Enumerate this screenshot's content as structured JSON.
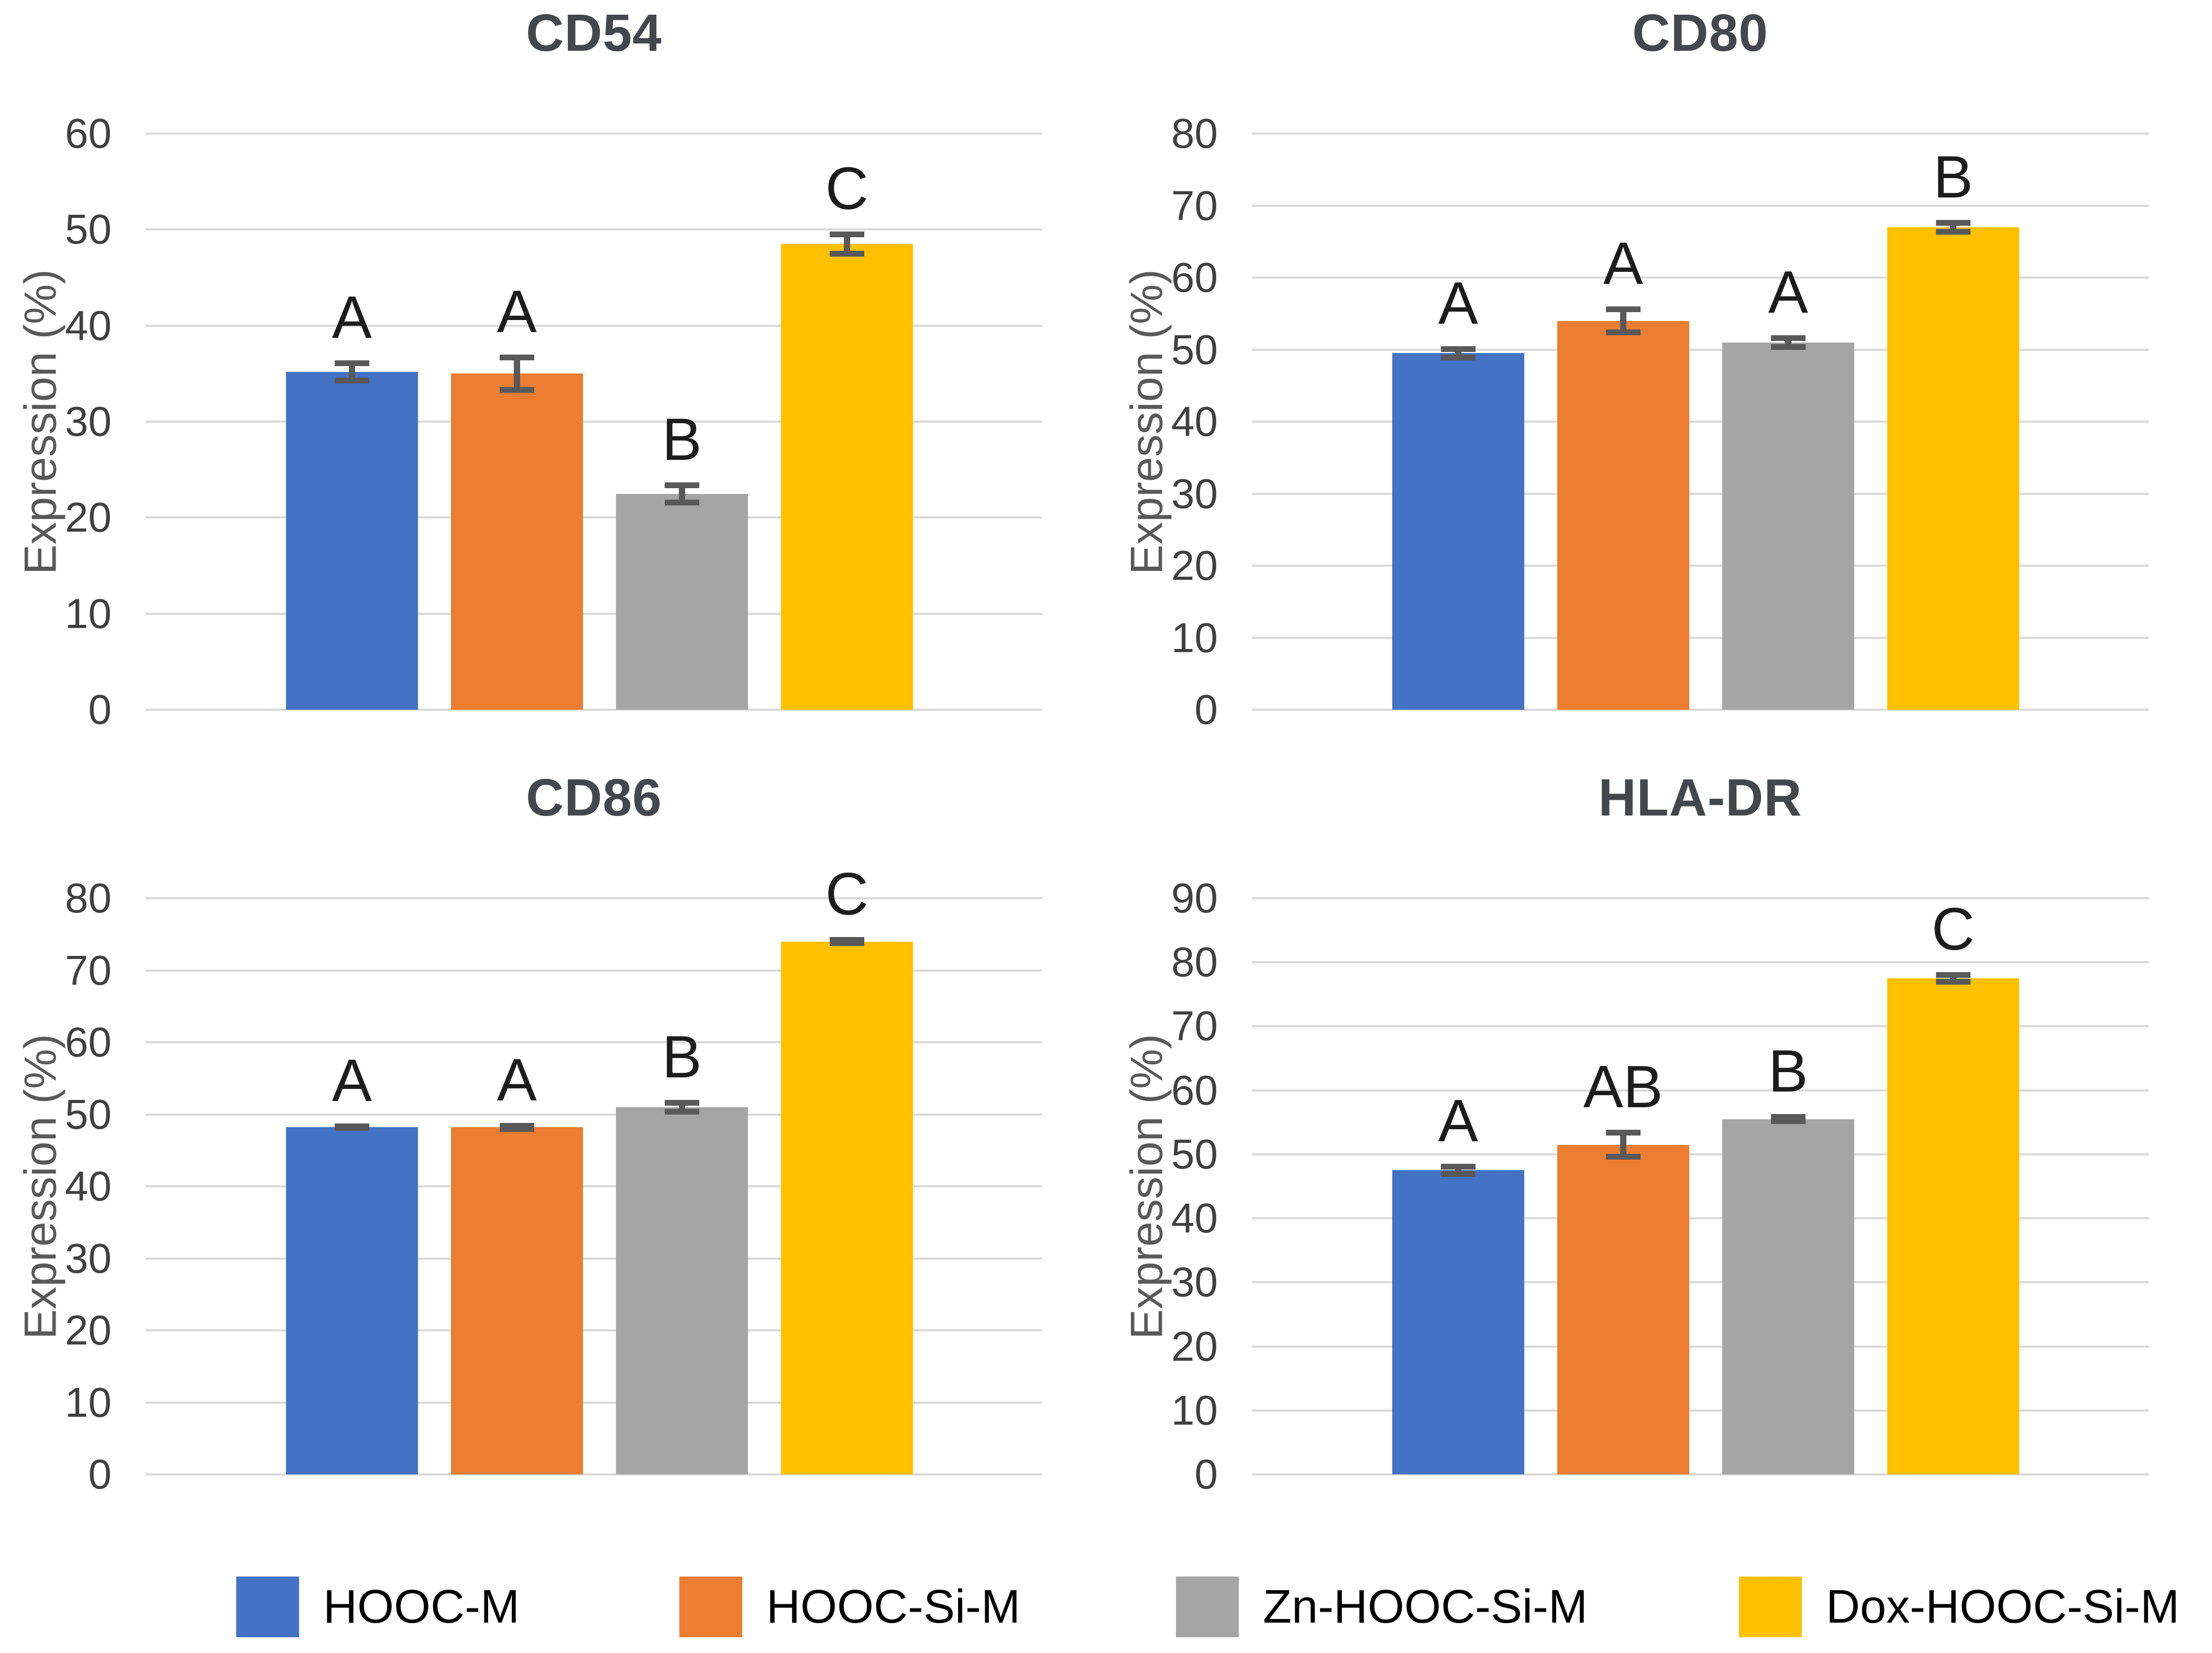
{
  "figure": {
    "background": "#FFFFFF",
    "description": "Four-panel bar chart figure of surface marker expression"
  },
  "chart_data": [
    {
      "type": "bar",
      "title": "CD54",
      "xlabel": "",
      "ylabel": "Expression (%)",
      "ylim": [
        0,
        60
      ],
      "ytick_step": 10,
      "grid": true,
      "legend_position": "shared-bottom",
      "categories": [
        "HOOC-M",
        "HOOC-Si-M",
        "Zn-HOOC-Si-M",
        "Dox-HOOC-Si-M"
      ],
      "values": [
        35.2,
        35.0,
        22.5,
        48.5
      ],
      "errors": [
        1.2,
        2.0,
        1.2,
        1.3
      ],
      "sig_letters": [
        "A",
        "A",
        "B",
        "C"
      ]
    },
    {
      "type": "bar",
      "title": "CD80",
      "xlabel": "",
      "ylabel": "Expression (%)",
      "ylim": [
        0,
        80
      ],
      "ytick_step": 10,
      "grid": true,
      "legend_position": "shared-bottom",
      "categories": [
        "HOOC-M",
        "HOOC-Si-M",
        "Zn-HOOC-Si-M",
        "Dox-HOOC-Si-M"
      ],
      "values": [
        49.5,
        54.0,
        51.0,
        67.0
      ],
      "errors": [
        1.0,
        2.0,
        1.0,
        1.0
      ],
      "sig_letters": [
        "A",
        "A",
        "A",
        "B"
      ]
    },
    {
      "type": "bar",
      "title": "CD86",
      "xlabel": "",
      "ylabel": "Expression (%)",
      "ylim": [
        0,
        80
      ],
      "ytick_step": 10,
      "grid": true,
      "legend_position": "shared-bottom",
      "categories": [
        "HOOC-M",
        "HOOC-Si-M",
        "Zn-HOOC-Si-M",
        "Dox-HOOC-Si-M"
      ],
      "values": [
        48.2,
        48.2,
        51.0,
        74.0
      ],
      "errors": [
        0.5,
        0.6,
        1.0,
        0.6
      ],
      "sig_letters": [
        "A",
        "A",
        "B",
        "C"
      ]
    },
    {
      "type": "bar",
      "title": "HLA-DR",
      "xlabel": "",
      "ylabel": "Expression (%)",
      "ylim": [
        0,
        90
      ],
      "ytick_step": 10,
      "grid": true,
      "legend_position": "shared-bottom",
      "categories": [
        "HOOC-M",
        "HOOC-Si-M",
        "Zn-HOOC-Si-M",
        "Dox-HOOC-Si-M"
      ],
      "values": [
        47.5,
        51.5,
        55.5,
        77.5
      ],
      "errors": [
        1.0,
        2.3,
        0.8,
        1.0
      ],
      "sig_letters": [
        "A",
        "AB",
        "B",
        "C"
      ]
    }
  ],
  "legend": {
    "items": [
      {
        "label": "HOOC-M",
        "color": "#4472C4"
      },
      {
        "label": "HOOC-Si-M",
        "color": "#ED7D31"
      },
      {
        "label": "Zn-HOOC-Si-M",
        "color": "#A5A5A5"
      },
      {
        "label": "Dox-HOOC-Si-M",
        "color": "#FFC000"
      }
    ]
  },
  "style_colors": {
    "gridline": "#D9D9D9",
    "error_bar": "#595959",
    "title_text": "#44474B",
    "tick_text": "#404040",
    "axis_label_text": "#595959",
    "letter_text": "#1C1C1C"
  }
}
